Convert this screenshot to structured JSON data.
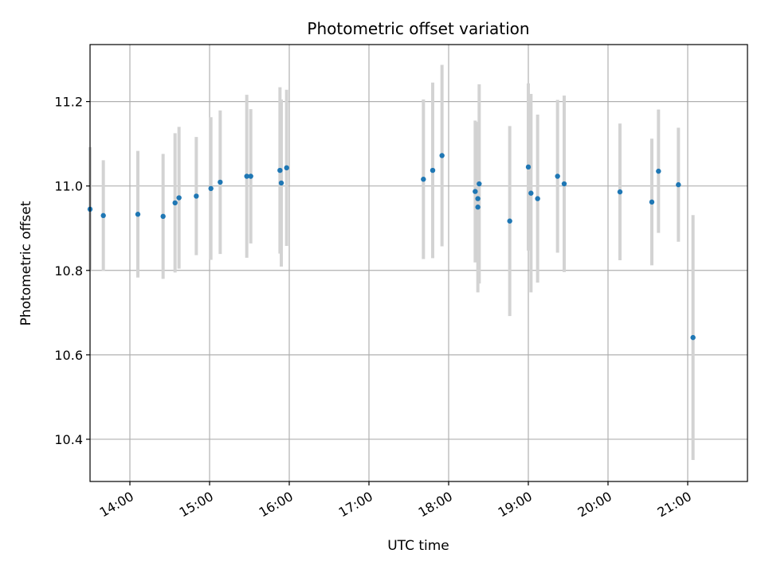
{
  "chart_data": {
    "type": "scatter",
    "title": "Photometric offset variation",
    "xlabel": "UTC time",
    "ylabel": "Photometric offset",
    "x_unit": "hours UTC",
    "xlim": [
      "13:30",
      "21:45"
    ],
    "ylim": [
      10.3,
      11.335
    ],
    "grid": true,
    "x_tick_labels": [
      "14:00",
      "15:00",
      "16:00",
      "17:00",
      "18:00",
      "19:00",
      "20:00",
      "21:00"
    ],
    "y_tick_labels": [
      "10.4",
      "10.6",
      "10.8",
      "11.0",
      "11.2"
    ],
    "y_ticks": [
      10.4,
      10.6,
      10.8,
      11.0,
      11.2
    ],
    "colors": {
      "points": "#1f77b4",
      "error_bars": "#d3d3d3",
      "grid": "#b0b0b0"
    },
    "points": [
      {
        "x": "13:30",
        "y": 10.945,
        "err": 0.147
      },
      {
        "x": "13:40",
        "y": 10.93,
        "err": 0.131
      },
      {
        "x": "14:06",
        "y": 10.933,
        "err": 0.15
      },
      {
        "x": "14:25",
        "y": 10.928,
        "err": 0.148
      },
      {
        "x": "14:34",
        "y": 10.96,
        "err": 0.165
      },
      {
        "x": "14:37",
        "y": 10.972,
        "err": 0.168
      },
      {
        "x": "14:50",
        "y": 10.976,
        "err": 0.14
      },
      {
        "x": "15:01",
        "y": 10.994,
        "err": 0.169
      },
      {
        "x": "15:08",
        "y": 11.009,
        "err": 0.17
      },
      {
        "x": "15:28",
        "y": 11.023,
        "err": 0.193
      },
      {
        "x": "15:31",
        "y": 11.023,
        "err": 0.159
      },
      {
        "x": "15:53",
        "y": 11.037,
        "err": 0.197
      },
      {
        "x": "15:54",
        "y": 11.007,
        "err": 0.198
      },
      {
        "x": "15:58",
        "y": 11.043,
        "err": 0.185
      },
      {
        "x": "17:41",
        "y": 11.016,
        "err": 0.189
      },
      {
        "x": "17:48",
        "y": 11.037,
        "err": 0.208
      },
      {
        "x": "17:55",
        "y": 11.072,
        "err": 0.215
      },
      {
        "x": "18:20",
        "y": 10.987,
        "err": 0.168
      },
      {
        "x": "18:22",
        "y": 10.97,
        "err": 0.15
      },
      {
        "x": "18:22",
        "y": 10.95,
        "err": 0.202
      },
      {
        "x": "18:23",
        "y": 11.005,
        "err": 0.236
      },
      {
        "x": "18:46",
        "y": 10.917,
        "err": 0.225
      },
      {
        "x": "19:00",
        "y": 11.045,
        "err": 0.198
      },
      {
        "x": "19:02",
        "y": 10.983,
        "err": 0.235
      },
      {
        "x": "19:07",
        "y": 10.97,
        "err": 0.199
      },
      {
        "x": "19:22",
        "y": 11.023,
        "err": 0.181
      },
      {
        "x": "19:27",
        "y": 11.005,
        "err": 0.209
      },
      {
        "x": "20:09",
        "y": 10.986,
        "err": 0.162
      },
      {
        "x": "20:33",
        "y": 10.962,
        "err": 0.15
      },
      {
        "x": "20:38",
        "y": 11.035,
        "err": 0.146
      },
      {
        "x": "20:53",
        "y": 11.003,
        "err": 0.135
      },
      {
        "x": "21:04",
        "y": 10.641,
        "err": 0.29
      }
    ]
  }
}
